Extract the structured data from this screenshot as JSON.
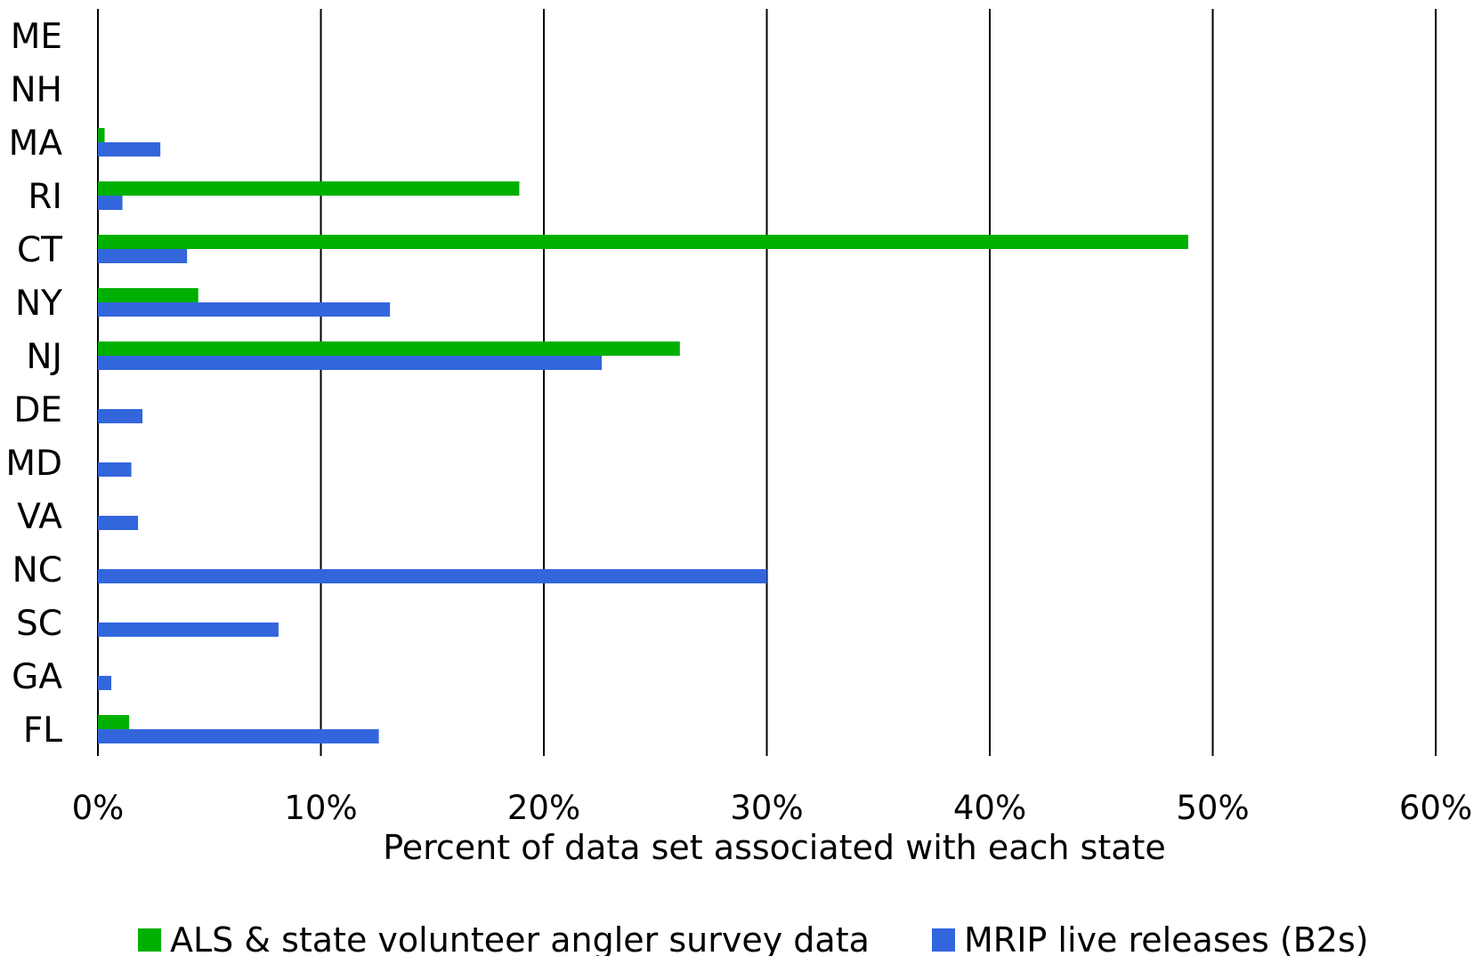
{
  "chart_data": {
    "type": "bar",
    "orientation": "horizontal",
    "categories": [
      "ME",
      "NH",
      "MA",
      "RI",
      "CT",
      "NY",
      "NJ",
      "DE",
      "MD",
      "VA",
      "NC",
      "SC",
      "GA",
      "FL"
    ],
    "series": [
      {
        "name": "ALS & state volunteer angler survey data",
        "color": "#00b000",
        "values": [
          0,
          0,
          0.3,
          18.9,
          48.9,
          4.5,
          26.1,
          0,
          0,
          0,
          0,
          0,
          0,
          1.4
        ]
      },
      {
        "name": "MRIP live releases (B2s)",
        "color": "#3366dd",
        "values": [
          0,
          0,
          2.8,
          1.1,
          4.0,
          13.1,
          22.6,
          2.0,
          1.5,
          1.8,
          30.0,
          8.1,
          0.6,
          12.6
        ]
      }
    ],
    "xlim": [
      0,
      60
    ],
    "xticks": [
      0,
      10,
      20,
      30,
      40,
      50,
      60
    ],
    "xtick_labels": [
      "0%",
      "10%",
      "20%",
      "30%",
      "40%",
      "50%",
      "60%"
    ],
    "xlabel": "Percent of data set associated with each state",
    "ylabel": "",
    "title": "",
    "grid": "vertical",
    "legend_position": "bottom"
  }
}
